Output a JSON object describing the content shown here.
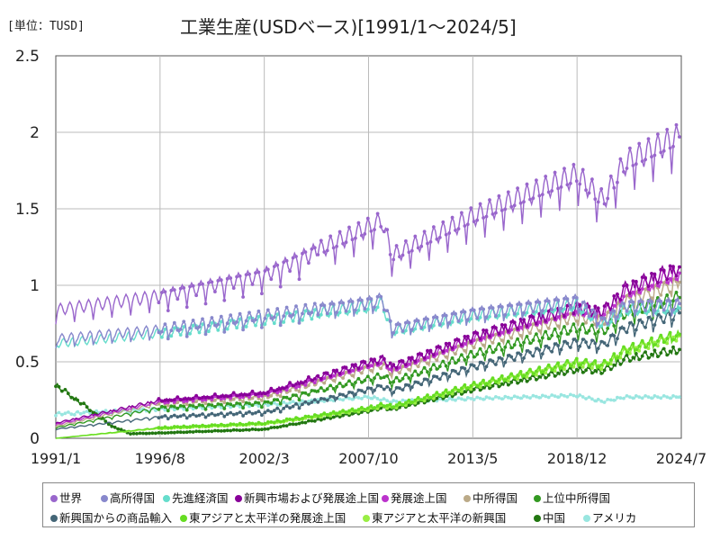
{
  "header": {
    "unit": "[単位：TUSD]",
    "title": "工業生産(USDベース)[1991/1～2024/5]"
  },
  "chart_data": {
    "type": "line",
    "title": "工業生産(USDベース)[1991/1～2024/5]",
    "unit": "[単位：TUSD]",
    "ylim": [
      0,
      2.5
    ],
    "y_ticks": [
      "0",
      "0.5",
      "1",
      "1.5",
      "2",
      "2.5"
    ],
    "x_ticks": [
      "1991/1",
      "1996/8",
      "2002/3",
      "2007/10",
      "2013/5",
      "2018/12",
      "2024/7"
    ],
    "grid": true,
    "legend_position": "bottom",
    "series": [
      {
        "name": "世界",
        "color": "#9966cc",
        "points": [
          [
            1991.0,
            0.84
          ],
          [
            1996.6,
            0.93
          ],
          [
            2002.2,
            1.07
          ],
          [
            2007.8,
            1.38
          ],
          [
            2008.5,
            1.42
          ],
          [
            2009.0,
            1.19
          ],
          [
            2013.4,
            1.45
          ],
          [
            2018.9,
            1.72
          ],
          [
            2020.3,
            1.55
          ],
          [
            2021.5,
            1.8
          ],
          [
            2024.4,
            1.97
          ]
        ]
      },
      {
        "name": "高所得国",
        "color": "#8888cc",
        "points": [
          [
            1991.0,
            0.65
          ],
          [
            1996.6,
            0.71
          ],
          [
            2002.2,
            0.8
          ],
          [
            2007.8,
            0.89
          ],
          [
            2008.5,
            0.91
          ],
          [
            2009.0,
            0.72
          ],
          [
            2013.4,
            0.82
          ],
          [
            2018.9,
            0.9
          ],
          [
            2020.3,
            0.76
          ],
          [
            2021.5,
            0.87
          ],
          [
            2024.4,
            0.88
          ]
        ]
      },
      {
        "name": "先進経済国",
        "color": "#66ddcc",
        "points": [
          [
            1991.0,
            0.62
          ],
          [
            1996.6,
            0.69
          ],
          [
            2002.2,
            0.78
          ],
          [
            2007.8,
            0.86
          ],
          [
            2008.5,
            0.88
          ],
          [
            2009.0,
            0.7
          ],
          [
            2013.4,
            0.8
          ],
          [
            2018.9,
            0.87
          ],
          [
            2020.3,
            0.74
          ],
          [
            2021.5,
            0.84
          ],
          [
            2024.4,
            0.85
          ]
        ]
      },
      {
        "name": "新興市場および発展途上国",
        "color": "#880099",
        "points": [
          [
            1991.0,
            0.1
          ],
          [
            1996.6,
            0.25
          ],
          [
            2002.2,
            0.3
          ],
          [
            2007.8,
            0.5
          ],
          [
            2008.5,
            0.52
          ],
          [
            2009.0,
            0.47
          ],
          [
            2013.4,
            0.67
          ],
          [
            2018.9,
            0.86
          ],
          [
            2020.3,
            0.83
          ],
          [
            2021.5,
            0.98
          ],
          [
            2024.4,
            1.12
          ]
        ]
      },
      {
        "name": "発展途上国",
        "color": "#bb33cc",
        "points": [
          [
            1991.0,
            0.09
          ],
          [
            1996.6,
            0.24
          ],
          [
            2002.2,
            0.29
          ],
          [
            2007.8,
            0.48
          ],
          [
            2008.5,
            0.5
          ],
          [
            2009.0,
            0.45
          ],
          [
            2013.4,
            0.65
          ],
          [
            2018.9,
            0.84
          ],
          [
            2020.3,
            0.81
          ],
          [
            2021.5,
            0.95
          ],
          [
            2024.4,
            1.08
          ]
        ]
      },
      {
        "name": "中所得国",
        "color": "#bbaa88",
        "points": [
          [
            1991.0,
            0.08
          ],
          [
            1996.6,
            0.23
          ],
          [
            2002.2,
            0.27
          ],
          [
            2007.8,
            0.46
          ],
          [
            2008.5,
            0.48
          ],
          [
            2009.0,
            0.43
          ],
          [
            2013.4,
            0.62
          ],
          [
            2018.9,
            0.8
          ],
          [
            2020.3,
            0.77
          ],
          [
            2021.5,
            0.9
          ],
          [
            2024.4,
            1.02
          ]
        ]
      },
      {
        "name": "上位中所得国",
        "color": "#339922",
        "points": [
          [
            1991.0,
            0.07
          ],
          [
            1996.6,
            0.2
          ],
          [
            2002.2,
            0.23
          ],
          [
            2007.8,
            0.39
          ],
          [
            2008.5,
            0.41
          ],
          [
            2009.0,
            0.37
          ],
          [
            2013.4,
            0.55
          ],
          [
            2018.9,
            0.72
          ],
          [
            2020.3,
            0.7
          ],
          [
            2021.5,
            0.82
          ],
          [
            2024.4,
            0.92
          ]
        ]
      },
      {
        "name": "新興国からの商品輸入",
        "color": "#446677",
        "points": [
          [
            1991.0,
            0.06
          ],
          [
            1996.6,
            0.14
          ],
          [
            2002.2,
            0.17
          ],
          [
            2007.8,
            0.32
          ],
          [
            2008.5,
            0.34
          ],
          [
            2009.0,
            0.31
          ],
          [
            2013.4,
            0.47
          ],
          [
            2018.9,
            0.63
          ],
          [
            2020.3,
            0.61
          ],
          [
            2021.5,
            0.72
          ],
          [
            2024.4,
            0.82
          ]
        ]
      },
      {
        "name": "東アジアと太平洋の発展途上国",
        "color": "#66dd22",
        "points": [
          [
            1991.0,
            0.0
          ],
          [
            1996.6,
            0.07
          ],
          [
            2002.2,
            0.1
          ],
          [
            2007.8,
            0.2
          ],
          [
            2008.5,
            0.22
          ],
          [
            2009.0,
            0.21
          ],
          [
            2013.4,
            0.35
          ],
          [
            2018.9,
            0.5
          ],
          [
            2020.3,
            0.48
          ],
          [
            2021.5,
            0.58
          ],
          [
            2024.4,
            0.68
          ]
        ]
      },
      {
        "name": "東アジアと太平洋の新興国",
        "color": "#99ee44",
        "points": [
          [
            1991.0,
            0.0
          ],
          [
            1996.6,
            0.065
          ],
          [
            2002.2,
            0.095
          ],
          [
            2007.8,
            0.19
          ],
          [
            2008.5,
            0.21
          ],
          [
            2009.0,
            0.2
          ],
          [
            2013.4,
            0.34
          ],
          [
            2018.9,
            0.49
          ],
          [
            2020.3,
            0.47
          ],
          [
            2021.5,
            0.57
          ],
          [
            2024.4,
            0.67
          ]
        ]
      },
      {
        "name": "中国",
        "color": "#227711",
        "points": [
          [
            1991.0,
            0.35
          ],
          [
            1992.5,
            0.22
          ],
          [
            1994.0,
            0.08
          ],
          [
            1995.0,
            0.03
          ],
          [
            1996.6,
            0.035
          ],
          [
            2002.2,
            0.06
          ],
          [
            2007.8,
            0.18
          ],
          [
            2008.5,
            0.2
          ],
          [
            2009.0,
            0.19
          ],
          [
            2013.4,
            0.32
          ],
          [
            2018.9,
            0.45
          ],
          [
            2020.3,
            0.44
          ],
          [
            2021.5,
            0.52
          ],
          [
            2024.4,
            0.58
          ]
        ]
      },
      {
        "name": "アメリカ",
        "color": "#99e6e0",
        "points": [
          [
            1991.0,
            0.16
          ],
          [
            1996.6,
            0.19
          ],
          [
            2002.2,
            0.22
          ],
          [
            2007.8,
            0.27
          ],
          [
            2009.0,
            0.24
          ],
          [
            2013.4,
            0.26
          ],
          [
            2018.9,
            0.28
          ],
          [
            2020.3,
            0.24
          ],
          [
            2021.5,
            0.27
          ],
          [
            2024.4,
            0.27
          ]
        ]
      }
    ]
  },
  "legend": [
    {
      "label": "世界",
      "color": "#9966cc"
    },
    {
      "label": "高所得国",
      "color": "#8888cc"
    },
    {
      "label": "先進経済国",
      "color": "#66ddcc"
    },
    {
      "label": "新興市場および発展途上国",
      "color": "#880099"
    },
    {
      "label": "発展途上国",
      "color": "#bb33cc"
    },
    {
      "label": "中所得国",
      "color": "#bbaa88"
    },
    {
      "label": "上位中所得国",
      "color": "#339922"
    },
    {
      "label": "新興国からの商品輸入",
      "color": "#446677"
    },
    {
      "label": "東アジアと太平洋の発展途上国",
      "color": "#66dd22"
    },
    {
      "label": "東アジアと太平洋の新興国",
      "color": "#99ee44"
    },
    {
      "label": "中国",
      "color": "#227711"
    },
    {
      "label": "アメリカ",
      "color": "#99e6e0"
    }
  ]
}
